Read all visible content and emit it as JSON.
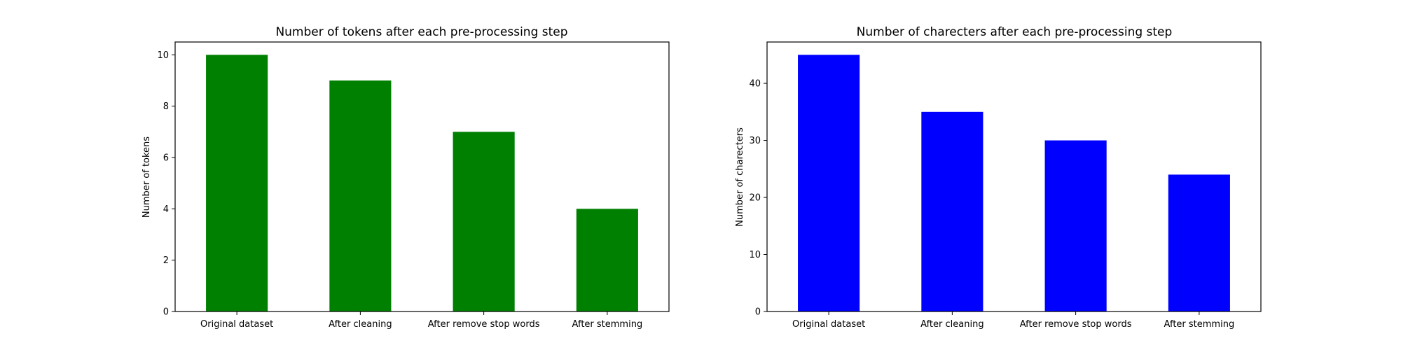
{
  "chart_data": [
    {
      "type": "bar",
      "title": "Number of tokens after each pre-processing step",
      "xlabel": "",
      "ylabel": "Number of tokens",
      "categories": [
        "Original dataset",
        "After cleaning",
        "After remove stop words",
        "After stemming"
      ],
      "values": [
        10,
        9,
        7,
        4
      ],
      "ylim": [
        0,
        10.5
      ],
      "yticks": [
        0,
        2,
        4,
        6,
        8,
        10
      ],
      "color": "#008000",
      "grid": false,
      "legend": "none"
    },
    {
      "type": "bar",
      "title": "Number of charecters after each pre-processing step",
      "xlabel": "",
      "ylabel": "Number of charecters",
      "categories": [
        "Original dataset",
        "After cleaning",
        "After remove stop words",
        "After stemming"
      ],
      "values": [
        45,
        35,
        30,
        24
      ],
      "ylim": [
        0,
        47.25
      ],
      "yticks": [
        0,
        10,
        20,
        30,
        40
      ],
      "color": "#0000ff",
      "grid": false,
      "legend": "none"
    }
  ]
}
